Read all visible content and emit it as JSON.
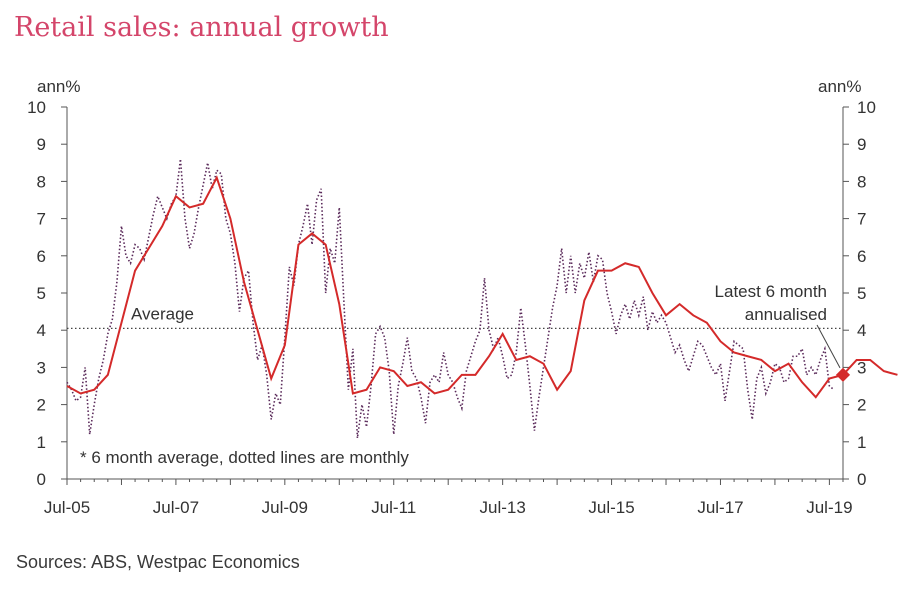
{
  "title": "Retail sales: annual growth",
  "source": "Sources: ABS, Westpac Economics",
  "chart_data": {
    "type": "line",
    "y_unit_left": "ann%",
    "y_unit_right": "ann%",
    "ylim": [
      0,
      10
    ],
    "yticks": [
      "0",
      "1",
      "2",
      "3",
      "4",
      "5",
      "6",
      "7",
      "8",
      "9",
      "10"
    ],
    "xlim": [
      2005.5,
      2019.75
    ],
    "xticks": [
      {
        "label": "Jul-05",
        "x": 2005.5
      },
      {
        "label": "Jul-07",
        "x": 2007.5
      },
      {
        "label": "Jul-09",
        "x": 2009.5
      },
      {
        "label": "Jul-11",
        "x": 2011.5
      },
      {
        "label": "Jul-13",
        "x": 2013.5
      },
      {
        "label": "Jul-15",
        "x": 2015.5
      },
      {
        "label": "Jul-17",
        "x": 2017.5
      },
      {
        "label": "Jul-19",
        "x": 2019.5
      }
    ],
    "average": {
      "label": "Average",
      "value": 4.05
    },
    "note": "* 6 month average, dotted lines are monthly",
    "latest_label": [
      "Latest 6 month",
      "annualised"
    ],
    "latest_point": {
      "x": 2019.75,
      "y": 2.8
    },
    "colors": {
      "avg_line": "#d42a2a",
      "monthly_line": "#5a2a5a",
      "marker": "#d42a2a",
      "title": "#d4456a"
    },
    "series": [
      {
        "style": "six-month-average",
        "x0": 2005.5,
        "step": 0.25,
        "values": [
          2.5,
          2.3,
          2.4,
          2.8,
          4.2,
          5.6,
          6.2,
          6.8,
          7.6,
          7.3,
          7.4,
          8.1,
          7.0,
          5.3,
          4.0,
          2.7,
          3.6,
          6.3,
          6.6,
          6.3,
          4.7,
          2.3,
          2.4,
          3.0,
          2.9,
          2.5,
          2.6,
          2.3,
          2.4,
          2.8,
          2.8,
          3.3,
          3.9,
          3.2,
          3.3,
          3.1,
          2.4,
          2.9,
          4.8,
          5.6,
          5.6,
          5.8,
          5.7,
          5.0,
          4.4,
          4.7,
          4.4,
          4.2,
          3.7,
          3.4,
          3.3,
          3.2,
          2.9,
          3.1,
          2.6,
          2.2,
          2.7,
          2.8,
          3.2,
          3.2,
          2.9,
          2.8
        ]
      },
      {
        "style": "monthly",
        "x0": 2005.5,
        "step": 0.0833333,
        "values": [
          2.6,
          2.4,
          2.1,
          2.2,
          3.0,
          1.2,
          2.0,
          2.7,
          3.2,
          3.9,
          4.3,
          5.3,
          6.8,
          6.0,
          5.8,
          6.3,
          6.2,
          5.9,
          6.5,
          7.1,
          7.6,
          7.3,
          7.0,
          7.4,
          7.6,
          8.6,
          7.0,
          6.2,
          6.6,
          7.3,
          7.9,
          8.5,
          7.8,
          8.3,
          8.2,
          7.0,
          6.6,
          5.8,
          4.5,
          5.4,
          5.6,
          4.2,
          3.2,
          3.6,
          2.8,
          1.6,
          2.3,
          2.0,
          3.8,
          5.7,
          5.2,
          6.3,
          6.8,
          7.4,
          6.3,
          7.5,
          7.8,
          5.0,
          6.2,
          5.8,
          7.3,
          4.8,
          2.4,
          3.5,
          1.1,
          2.0,
          1.4,
          2.5,
          3.9,
          4.1,
          3.8,
          2.9,
          1.2,
          2.5,
          3.1,
          3.8,
          2.9,
          2.7,
          2.2,
          1.5,
          2.6,
          2.8,
          2.6,
          3.4,
          2.8,
          2.6,
          2.2,
          1.9,
          2.9,
          3.3,
          3.7,
          4.0,
          5.4,
          4.0,
          3.5,
          3.8,
          3.3,
          2.7,
          2.8,
          3.4,
          4.6,
          3.6,
          2.5,
          1.3,
          2.2,
          3.0,
          3.8,
          4.6,
          5.2,
          6.2,
          5.0,
          6.0,
          5.0,
          5.8,
          5.4,
          6.1,
          5.3,
          6.0,
          5.9,
          5.0,
          4.5,
          3.9,
          4.4,
          4.7,
          4.3,
          4.8,
          4.4,
          4.9,
          4.0,
          4.5,
          4.2,
          4.4,
          4.2,
          3.8,
          3.4,
          3.6,
          3.2,
          2.9,
          3.3,
          3.7,
          3.6,
          3.3,
          3.0,
          2.8,
          3.1,
          2.1,
          2.9,
          3.7,
          3.6,
          3.5,
          2.4,
          1.6,
          2.7,
          3.0,
          2.3,
          2.6,
          3.1,
          3.0,
          2.6,
          2.7,
          3.3,
          3.3,
          3.5,
          2.8,
          3.0,
          2.8,
          3.2,
          3.5,
          2.5,
          2.4
        ]
      }
    ]
  }
}
